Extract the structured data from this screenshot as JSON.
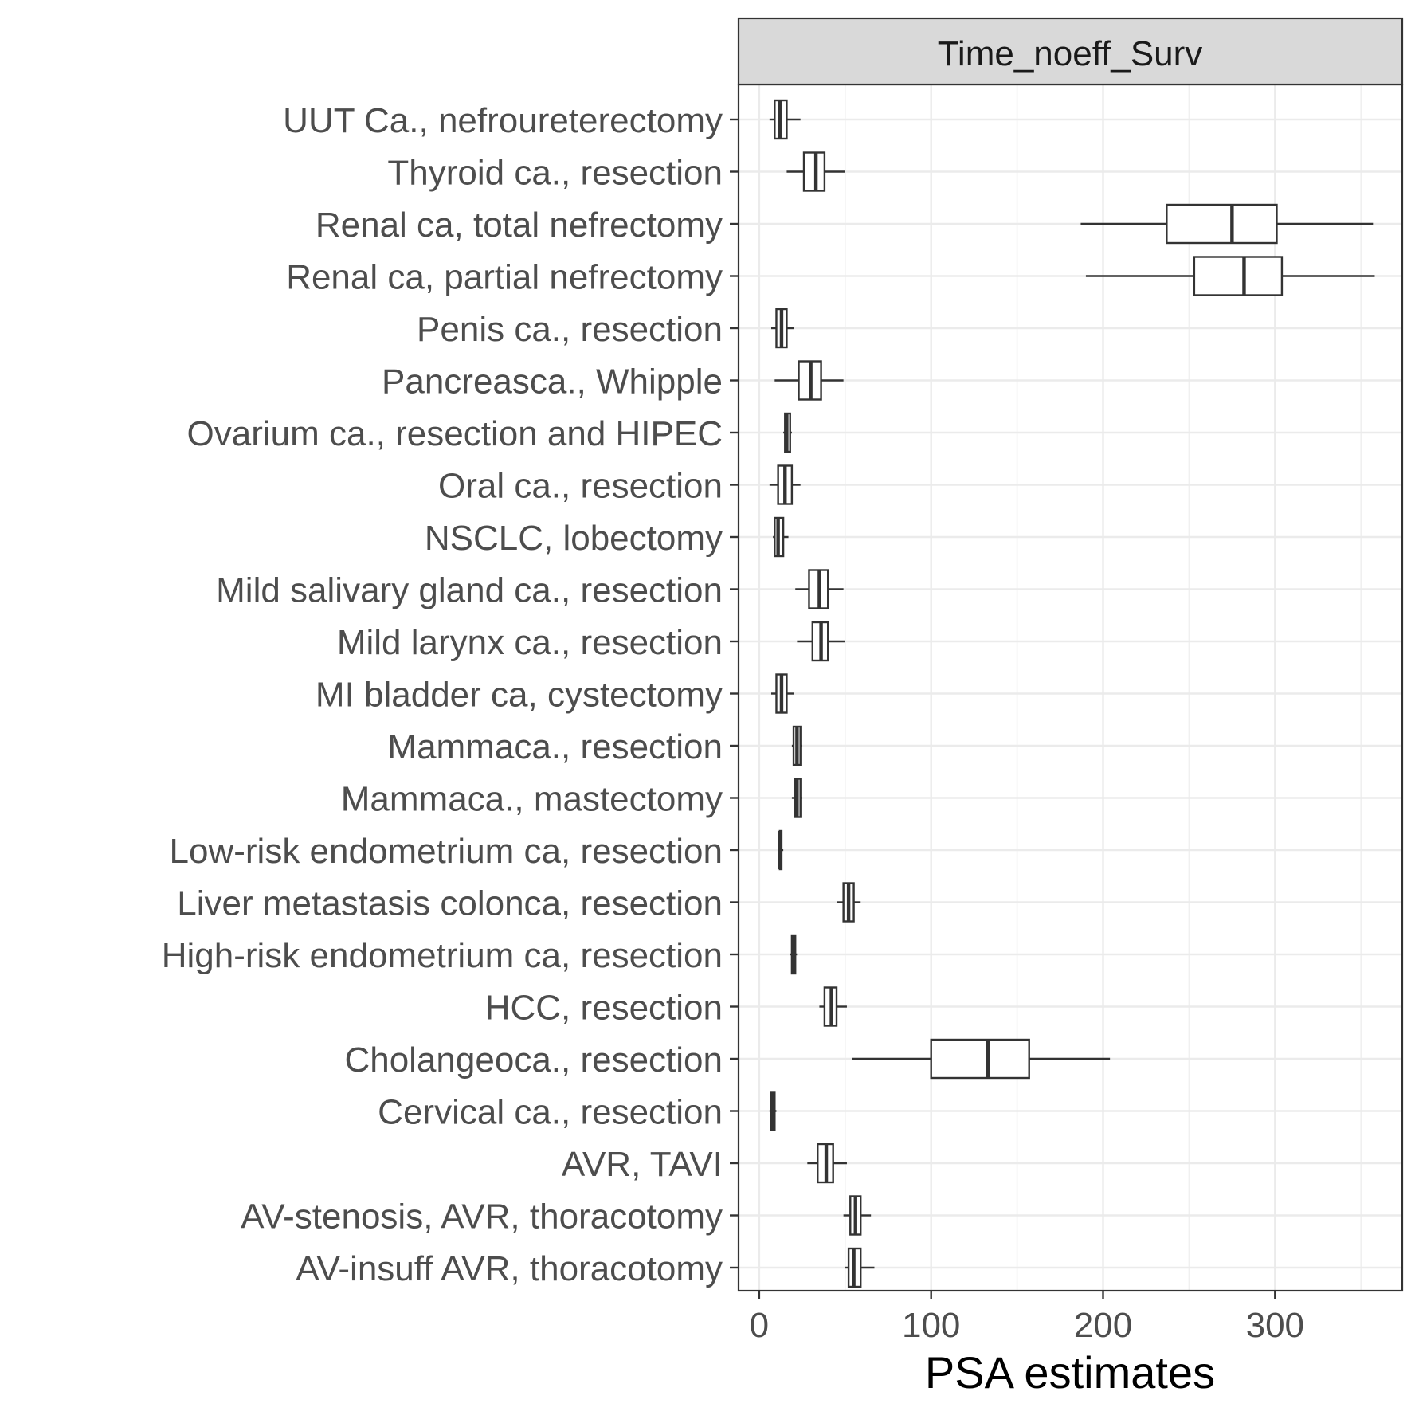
{
  "chart_data": {
    "type": "boxplot",
    "facet_label": "Time_noeff_Surv",
    "xlabel": "PSA estimates",
    "ylabel": "",
    "xlim": [
      -12,
      374
    ],
    "x_ticks": [
      0,
      100,
      200,
      300
    ],
    "x_minor_ticks": [
      50,
      150,
      250,
      350
    ],
    "grid": true,
    "categories": [
      "UUT Ca., nefroureterectomy",
      "Thyroid ca., resection",
      "Renal ca, total nefrectomy",
      "Renal ca, partial nefrectomy",
      "Penis ca., resection",
      "Pancreasca., Whipple",
      "Ovarium ca., resection and HIPEC",
      "Oral ca., resection",
      "NSCLC, lobectomy",
      "Mild salivary gland ca., resection",
      "Mild larynx ca., resection",
      "MI bladder ca, cystectomy",
      "Mammaca., resection",
      "Mammaca., mastectomy",
      "Low-risk endometrium ca, resection",
      "Liver metastasis colonca, resection",
      "High-risk endometrium ca, resection",
      "HCC, resection",
      "Cholangeoca., resection",
      "Cervical ca., resection",
      "AVR, TAVI",
      "AV-stenosis, AVR, thoracotomy",
      "AV-insuff AVR, thoracotomy"
    ],
    "boxes": [
      {
        "min": 6,
        "q1": 9,
        "median": 12,
        "q3": 16,
        "max": 24
      },
      {
        "min": 16,
        "q1": 26,
        "median": 33,
        "q3": 38,
        "max": 50
      },
      {
        "min": 187,
        "q1": 237,
        "median": 275,
        "q3": 301,
        "max": 357
      },
      {
        "min": 190,
        "q1": 253,
        "median": 282,
        "q3": 304,
        "max": 358
      },
      {
        "min": 7,
        "q1": 10,
        "median": 13,
        "q3": 16,
        "max": 20
      },
      {
        "min": 9,
        "q1": 23,
        "median": 30,
        "q3": 36,
        "max": 49
      },
      {
        "min": 14,
        "q1": 15,
        "median": 16,
        "q3": 18,
        "max": 19
      },
      {
        "min": 6,
        "q1": 11,
        "median": 15,
        "q3": 19,
        "max": 24
      },
      {
        "min": 8,
        "q1": 9,
        "median": 11,
        "q3": 14,
        "max": 17
      },
      {
        "min": 21,
        "q1": 29,
        "median": 35,
        "q3": 40,
        "max": 49
      },
      {
        "min": 22,
        "q1": 31,
        "median": 36,
        "q3": 40,
        "max": 50
      },
      {
        "min": 7,
        "q1": 10,
        "median": 13,
        "q3": 16,
        "max": 20
      },
      {
        "min": 19,
        "q1": 20,
        "median": 22,
        "q3": 24,
        "max": 25
      },
      {
        "min": 19,
        "q1": 21,
        "median": 22,
        "q3": 24,
        "max": 25
      },
      {
        "min": 11,
        "q1": 12,
        "median": 12,
        "q3": 13,
        "max": 14
      },
      {
        "min": 45,
        "q1": 49,
        "median": 52,
        "q3": 55,
        "max": 59
      },
      {
        "min": 18,
        "q1": 19,
        "median": 20,
        "q3": 21,
        "max": 22
      },
      {
        "min": 35,
        "q1": 38,
        "median": 42,
        "q3": 45,
        "max": 51
      },
      {
        "min": 54,
        "q1": 100,
        "median": 133,
        "q3": 157,
        "max": 204
      },
      {
        "min": 6,
        "q1": 7,
        "median": 8,
        "q3": 9,
        "max": 10
      },
      {
        "min": 28,
        "q1": 34,
        "median": 39,
        "q3": 43,
        "max": 51
      },
      {
        "min": 49,
        "q1": 53,
        "median": 56,
        "q3": 59,
        "max": 65
      },
      {
        "min": 50,
        "q1": 52,
        "median": 55,
        "q3": 59,
        "max": 67
      }
    ]
  }
}
